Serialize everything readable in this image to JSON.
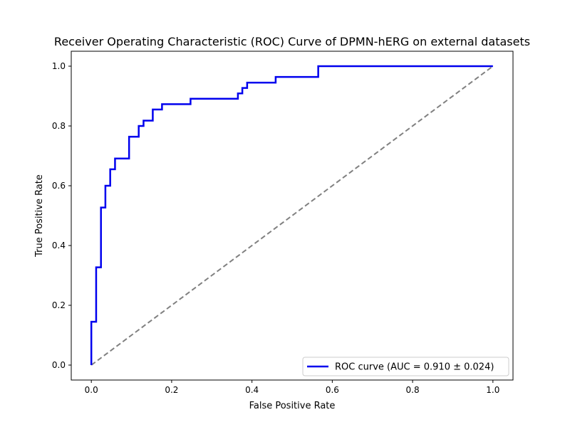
{
  "chart_data": {
    "type": "line",
    "title": "Receiver Operating Characteristic (ROC) Curve of DPMN-hERG on external datasets",
    "xlabel": "False Positive Rate",
    "ylabel": "True Positive Rate",
    "xlim": [
      -0.05,
      1.05
    ],
    "ylim": [
      -0.05,
      1.05
    ],
    "x_ticks": [
      0.0,
      0.2,
      0.4,
      0.6,
      0.8,
      1.0
    ],
    "x_tick_labels": [
      "0.0",
      "0.2",
      "0.4",
      "0.6",
      "0.8",
      "1.0"
    ],
    "y_ticks": [
      0.0,
      0.2,
      0.4,
      0.6,
      0.8,
      1.0
    ],
    "y_tick_labels": [
      "0.0",
      "0.2",
      "0.4",
      "0.6",
      "0.8",
      "1.0"
    ],
    "grid": false,
    "legend_position": "lower-right",
    "series": [
      {
        "name": "ROC curve (AUC = 0.910 ± 0.024)",
        "color": "#0000ee",
        "style": "solid",
        "x": [
          0.0,
          0.0,
          0.012,
          0.012,
          0.024,
          0.024,
          0.035,
          0.035,
          0.047,
          0.047,
          0.059,
          0.059,
          0.094,
          0.094,
          0.118,
          0.118,
          0.13,
          0.13,
          0.153,
          0.153,
          0.176,
          0.176,
          0.247,
          0.247,
          0.365,
          0.365,
          0.376,
          0.376,
          0.388,
          0.388,
          0.459,
          0.459,
          0.565,
          0.565,
          1.0
        ],
        "y": [
          0.0,
          0.145,
          0.145,
          0.327,
          0.327,
          0.527,
          0.527,
          0.6,
          0.6,
          0.655,
          0.655,
          0.691,
          0.691,
          0.764,
          0.764,
          0.8,
          0.8,
          0.818,
          0.818,
          0.855,
          0.855,
          0.873,
          0.873,
          0.891,
          0.891,
          0.909,
          0.909,
          0.927,
          0.927,
          0.945,
          0.945,
          0.964,
          0.964,
          1.0,
          1.0
        ]
      },
      {
        "name": "",
        "color": "#808080",
        "style": "dashed",
        "x": [
          0.0,
          1.0
        ],
        "y": [
          0.0,
          1.0
        ]
      }
    ]
  }
}
